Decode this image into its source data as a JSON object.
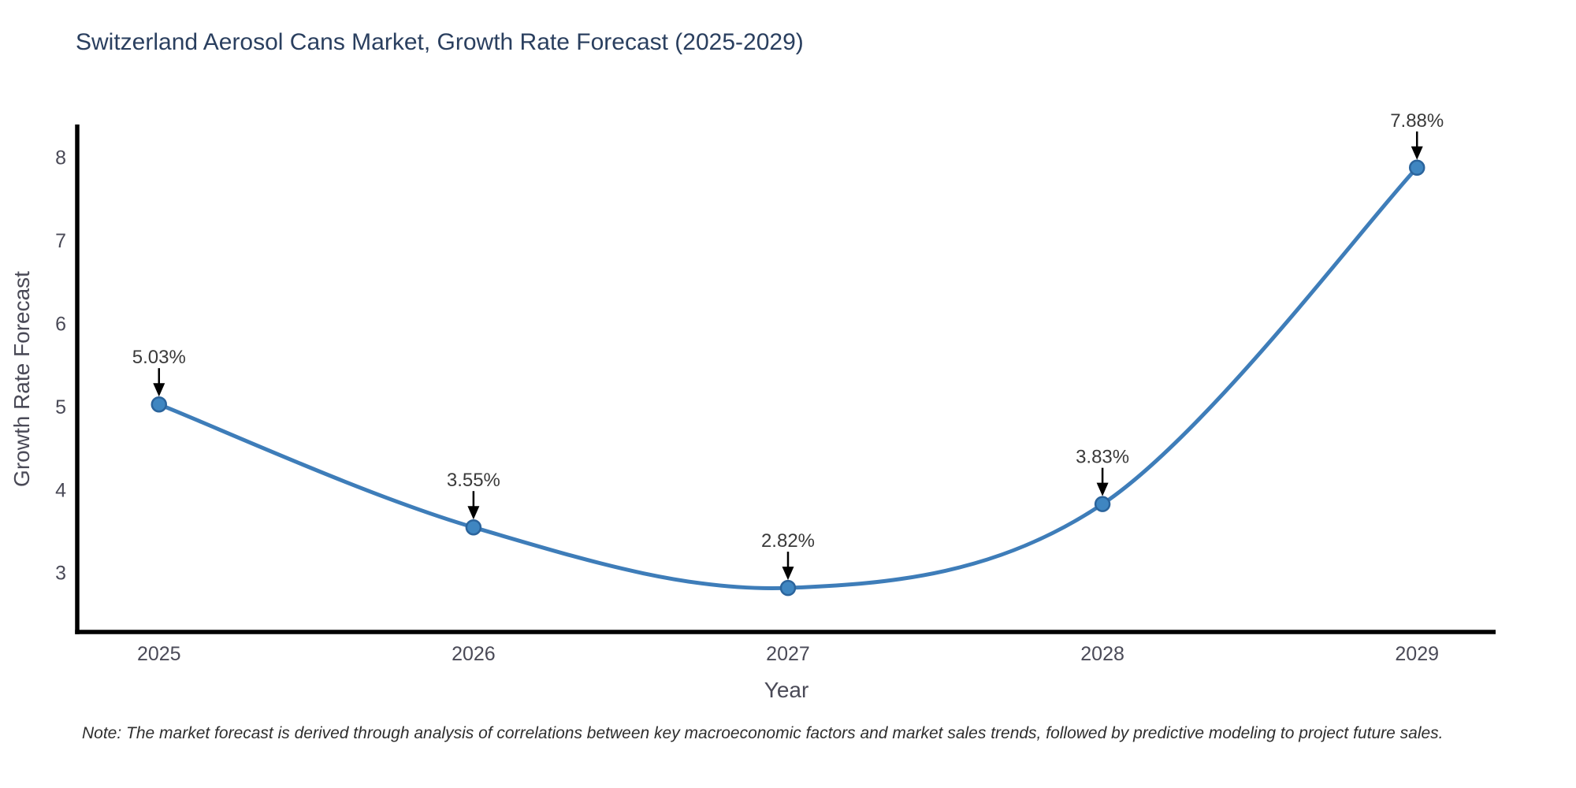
{
  "note": "Note: The market forecast is derived through analysis of correlations between key macroeconomic factors and market sales trends, followed by predictive modeling to project future sales.",
  "chart_data": {
    "type": "line",
    "title": "Switzerland Aerosol Cans Market, Growth Rate Forecast (2025-2029)",
    "xlabel": "Year",
    "ylabel": "Growth Rate Forecast",
    "x": [
      2025,
      2026,
      2027,
      2028,
      2029
    ],
    "series": [
      {
        "name": "Growth Rate Forecast",
        "values": [
          5.03,
          3.55,
          2.82,
          3.83,
          7.88
        ]
      }
    ],
    "point_labels": [
      "5.03%",
      "3.55%",
      "2.82%",
      "3.83%",
      "7.88%"
    ],
    "xtick_labels": [
      "2025",
      "2026",
      "2027",
      "2028",
      "2029"
    ],
    "ytick_values": [
      3,
      4,
      5,
      6,
      7,
      8
    ],
    "xlim": [
      2024.74,
      2029.25
    ],
    "ylim": [
      2.29,
      8.4
    ],
    "grid": false,
    "legend": "none",
    "line_shape": "spline",
    "annotation_style": "label-above-with-down-arrow",
    "colors": {
      "line": "#3e7db9",
      "marker_fill": "#3f86c1",
      "marker_edge": "#2b649c",
      "axis": "#000000",
      "title": "#2a3f5f",
      "tick_label": "#4a4a57",
      "axis_label": "#4a4a57",
      "annotation_text": "#3a3a3a",
      "annotation_arrow": "#000000",
      "note_text": "#2e2e2e"
    }
  }
}
